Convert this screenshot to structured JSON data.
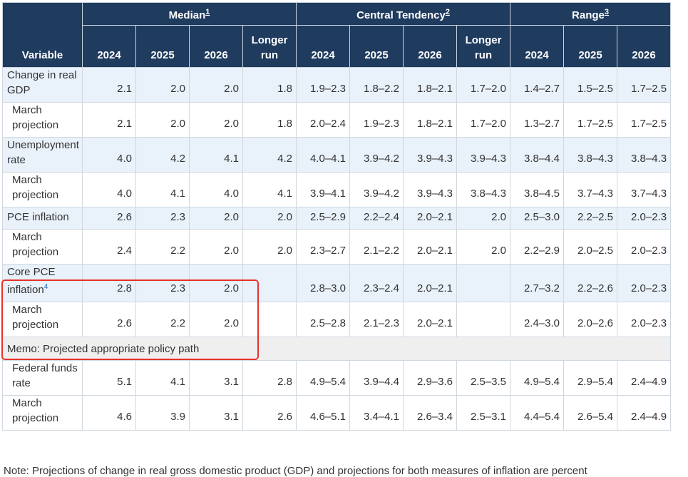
{
  "header": {
    "variable": "Variable",
    "groups": [
      {
        "label": "Median",
        "note": "1"
      },
      {
        "label": "Central Tendency",
        "note": "2"
      },
      {
        "label": "Range",
        "note": "3"
      }
    ],
    "columns": [
      "2024",
      "2025",
      "2026",
      "Longer run",
      "2024",
      "2025",
      "2026",
      "Longer run",
      "2024",
      "2025",
      "2026"
    ]
  },
  "rows": [
    {
      "label": "Change in real GDP",
      "cells": [
        "2.1",
        "2.0",
        "2.0",
        "1.8",
        "1.9–2.3",
        "1.8–2.2",
        "1.8–2.1",
        "1.7–2.0",
        "1.4–2.7",
        "1.5–2.5",
        "1.7–2.5"
      ]
    },
    {
      "label": "March projection",
      "cells": [
        "2.1",
        "2.0",
        "2.0",
        "1.8",
        "2.0–2.4",
        "1.9–2.3",
        "1.8–2.1",
        "1.7–2.0",
        "1.3–2.7",
        "1.7–2.5",
        "1.7–2.5"
      ]
    },
    {
      "label": "Unemployment rate",
      "cells": [
        "4.0",
        "4.2",
        "4.1",
        "4.2",
        "4.0–4.1",
        "3.9–4.2",
        "3.9–4.3",
        "3.9–4.3",
        "3.8–4.4",
        "3.8–4.3",
        "3.8–4.3"
      ]
    },
    {
      "label": "March projection",
      "cells": [
        "4.0",
        "4.1",
        "4.0",
        "4.1",
        "3.9–4.1",
        "3.9–4.2",
        "3.9–4.3",
        "3.8–4.3",
        "3.8–4.5",
        "3.7–4.3",
        "3.7–4.3"
      ]
    },
    {
      "label": "PCE inflation",
      "cells": [
        "2.6",
        "2.3",
        "2.0",
        "2.0",
        "2.5–2.9",
        "2.2–2.4",
        "2.0–2.1",
        "2.0",
        "2.5–3.0",
        "2.2–2.5",
        "2.0–2.3"
      ]
    },
    {
      "label": "March projection",
      "cells": [
        "2.4",
        "2.2",
        "2.0",
        "2.0",
        "2.3–2.7",
        "2.1–2.2",
        "2.0–2.1",
        "2.0",
        "2.2–2.9",
        "2.0–2.5",
        "2.0–2.3"
      ]
    },
    {
      "label": "Core PCE inflation",
      "note": "4",
      "cells": [
        "2.8",
        "2.3",
        "2.0",
        null,
        "2.8–3.0",
        "2.3–2.4",
        "2.0–2.1",
        null,
        "2.7–3.2",
        "2.2–2.6",
        "2.0–2.3"
      ]
    },
    {
      "label": "March projection",
      "cells": [
        "2.6",
        "2.2",
        "2.0",
        null,
        "2.5–2.8",
        "2.1–2.3",
        "2.0–2.1",
        null,
        "2.4–3.0",
        "2.0–2.6",
        "2.0–2.3"
      ]
    },
    {
      "memo": "Memo: Projected appropriate policy path"
    },
    {
      "label": "Federal funds rate",
      "cells": [
        "5.1",
        "4.1",
        "3.1",
        "2.8",
        "4.9–5.4",
        "3.9–4.4",
        "2.9–3.6",
        "2.5–3.5",
        "4.9–5.4",
        "2.9–5.4",
        "2.4–4.9"
      ]
    },
    {
      "label": "March projection",
      "cells": [
        "4.6",
        "3.9",
        "3.1",
        "2.6",
        "4.6–5.1",
        "3.4–4.1",
        "2.6–3.4",
        "2.5–3.1",
        "4.4–5.4",
        "2.6–5.4",
        "2.4–4.9"
      ]
    }
  ],
  "note": "Note: Projections of change in real gross domestic product (GDP) and projections for both measures of inflation are percent"
}
